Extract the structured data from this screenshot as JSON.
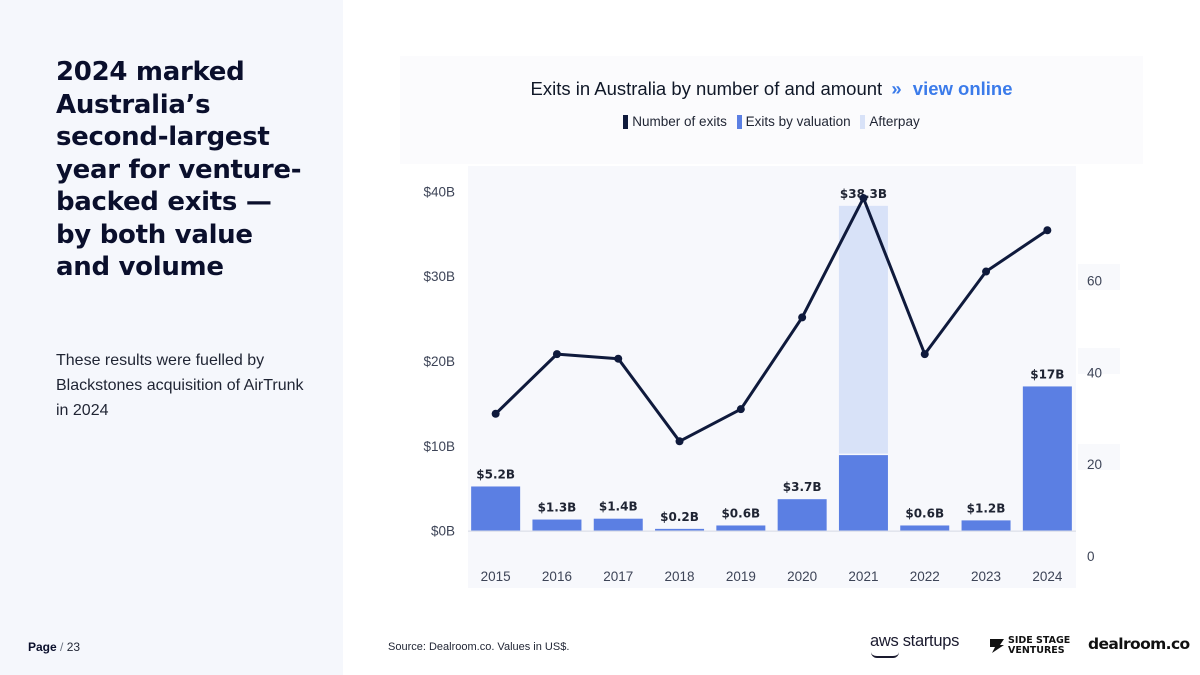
{
  "slide": {
    "headline": "2024 marked Australia’s second-largest year for venture-backed exits — by both value and volume",
    "body": "These results were fuelled by Blackstones acquisition of AirTrunk in 2024",
    "page_current": "Page",
    "page_separator": "/",
    "page_total": "23",
    "source": "Source:  Dealroom.co. Values in US$."
  },
  "logos": {
    "aws": "aws startups",
    "ssv_line1": "SIDE STAGE",
    "ssv_line2": "VENTURES",
    "dealroom": "dealroom.co"
  },
  "colors": {
    "exits_line": "#0f1a3c",
    "valuation_bar": "#5b7fe3",
    "afterpay_bar": "#d8e2f8",
    "link": "#3b7bea"
  },
  "chart_data": {
    "type": "bar",
    "title": "Exits in Australia by number of and amount",
    "title_link_chevron": "»",
    "title_link": "view online",
    "categories": [
      "2015",
      "2016",
      "2017",
      "2018",
      "2019",
      "2020",
      "2021",
      "2022",
      "2023",
      "2024"
    ],
    "series": [
      {
        "name": "Number of exits",
        "type": "line",
        "axis": "right",
        "values": [
          31,
          44,
          43,
          25,
          32,
          52,
          78,
          44,
          62,
          71
        ]
      },
      {
        "name": "Exits by valuation",
        "type": "bar",
        "axis": "left",
        "values": [
          5.2,
          1.3,
          1.4,
          0.2,
          0.6,
          3.7,
          8.9,
          0.6,
          1.2,
          17
        ]
      },
      {
        "name": "Afterpay",
        "type": "bar",
        "axis": "left",
        "stacked": true,
        "values": [
          0,
          0,
          0,
          0,
          0,
          0,
          29.4,
          0,
          0,
          0
        ]
      }
    ],
    "bar_labels": [
      "$5.2B",
      "$1.3B",
      "$1.4B",
      "$0.2B",
      "$0.6B",
      "$3.7B",
      "$38.3B",
      "$0.6B",
      "$1.2B",
      "$17B"
    ],
    "left_axis": {
      "ticks": [
        0,
        10,
        20,
        30,
        40
      ],
      "tick_labels": [
        "$0B",
        "$10B",
        "$20B",
        "$30B",
        "$40B"
      ],
      "range": [
        -3,
        43
      ]
    },
    "right_axis": {
      "ticks": [
        0,
        20,
        40,
        60
      ],
      "tick_labels": [
        "0",
        "20",
        "40",
        "60"
      ],
      "range": [
        0,
        85
      ]
    },
    "legend_position": "top-center"
  }
}
